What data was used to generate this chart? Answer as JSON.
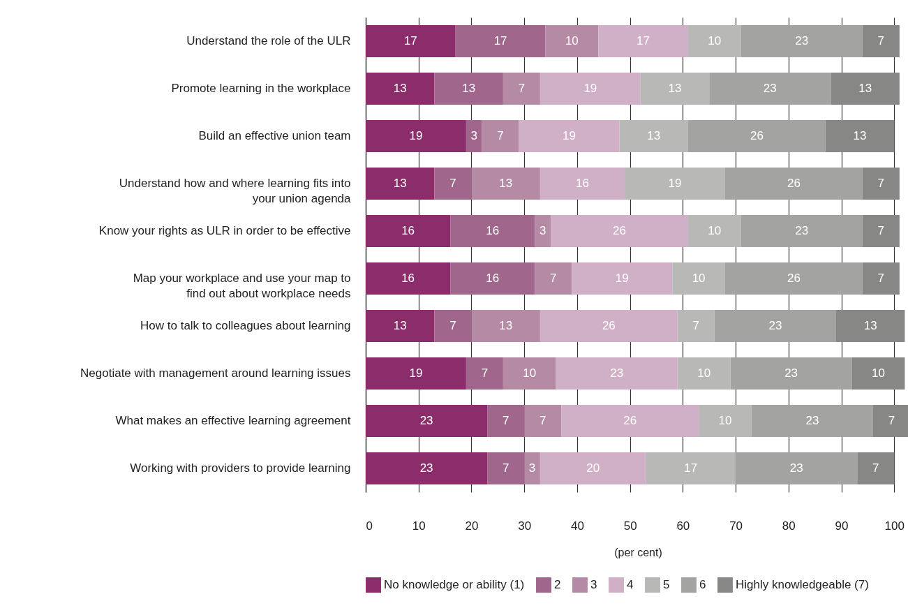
{
  "chart_data": {
    "type": "bar",
    "orientation": "horizontal",
    "stacked": true,
    "xlabel": "(per cent)",
    "xlim": [
      0,
      103
    ],
    "data_labels": true,
    "xticks": [
      0,
      10,
      20,
      30,
      40,
      50,
      60,
      70,
      80,
      90,
      100
    ],
    "grid": "x",
    "legend": "bottom",
    "categories": [
      "Understand the role of the ULR",
      "Promote learning in the workplace",
      "Build an effective union team",
      "Understand how and where learning fits into your union agenda",
      "Know your rights as ULR in order to be effective",
      "Map your workplace and use your map to find out about workplace needs",
      "How to talk to colleagues about learning",
      "Negotiate with management around learning issues",
      "What makes an effective learning agreement",
      "Working with providers to provide learning"
    ],
    "series": [
      {
        "name": "No knowledge or ability (1)",
        "color": "#8a2d6a",
        "values": [
          17,
          13,
          19,
          13,
          16,
          16,
          13,
          19,
          23,
          23
        ]
      },
      {
        "name": "2",
        "color": "#a0668b",
        "values": [
          17,
          13,
          3,
          7,
          16,
          16,
          7,
          7,
          7,
          7
        ]
      },
      {
        "name": "3",
        "color": "#b48aa4",
        "values": [
          10,
          7,
          7,
          13,
          3,
          7,
          13,
          10,
          7,
          3
        ]
      },
      {
        "name": "4",
        "color": "#cfb0c6",
        "values": [
          17,
          19,
          19,
          16,
          26,
          19,
          26,
          23,
          26,
          20
        ]
      },
      {
        "name": "5",
        "color": "#b8b8b6",
        "values": [
          10,
          13,
          13,
          19,
          10,
          10,
          7,
          10,
          10,
          17
        ]
      },
      {
        "name": "6",
        "color": "#a3a3a1",
        "values": [
          23,
          23,
          26,
          26,
          23,
          26,
          23,
          23,
          23,
          23
        ]
      },
      {
        "name": "Highly knowledgeable (7)",
        "color": "#878786",
        "values": [
          7,
          13,
          13,
          7,
          7,
          7,
          13,
          10,
          7,
          7
        ]
      }
    ]
  }
}
